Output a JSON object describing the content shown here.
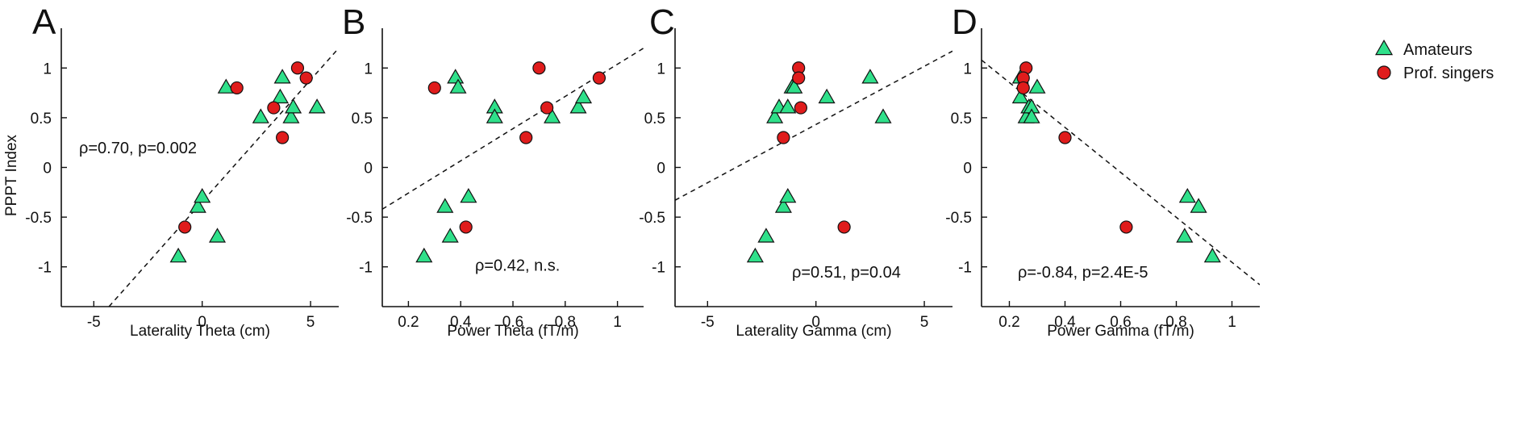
{
  "colors": {
    "amateurs": "#2fe08a",
    "prof_singers": "#e01c1c",
    "marker_edge": "#111111",
    "axis": "#111111",
    "fit_line": "#111111"
  },
  "legend": {
    "amateurs": "Amateurs",
    "prof_singers": "Prof. singers",
    "amateurs_marker": "triangle",
    "prof_singers_marker": "circle"
  },
  "chart_data": [
    {
      "type": "scatter",
      "panel_letter": "A",
      "xlabel": "Laterality Theta (cm)",
      "ylabel": "PPPT Index",
      "xlim": [
        -6.5,
        6.3
      ],
      "ylim": [
        -1.4,
        1.4
      ],
      "x_ticks": [
        -5,
        0,
        5
      ],
      "x_tick_labels": [
        "-5",
        "0",
        "5"
      ],
      "y_ticks": [
        -1,
        -0.5,
        0,
        0.5,
        1
      ],
      "y_tick_labels": [
        "-1",
        "-0.5",
        "0",
        "0.5",
        "1"
      ],
      "annotation": "ρ=0.70, p=0.002",
      "fit_line": [
        [
          -4.3,
          -1.4
        ],
        [
          6.3,
          1.2
        ]
      ],
      "series": [
        {
          "name": "Amateurs",
          "marker": "triangle",
          "points": [
            [
              1.1,
              0.8
            ],
            [
              2.7,
              0.5
            ],
            [
              3.6,
              0.7
            ],
            [
              3.7,
              0.9
            ],
            [
              4.1,
              0.5
            ],
            [
              4.2,
              0.6
            ],
            [
              5.3,
              0.6
            ],
            [
              -0.2,
              -0.4
            ],
            [
              0.0,
              -0.3
            ],
            [
              0.7,
              -0.7
            ],
            [
              -1.1,
              -0.9
            ]
          ]
        },
        {
          "name": "Prof. singers",
          "marker": "circle",
          "points": [
            [
              1.6,
              0.8
            ],
            [
              3.3,
              0.6
            ],
            [
              3.7,
              0.3
            ],
            [
              4.4,
              1.0
            ],
            [
              4.8,
              0.9
            ],
            [
              -0.8,
              -0.6
            ]
          ]
        }
      ]
    },
    {
      "type": "scatter",
      "panel_letter": "B",
      "xlabel": "Power Theta (fT/m)",
      "ylabel": "",
      "xlim": [
        0.1,
        1.1
      ],
      "ylim": [
        -1.4,
        1.4
      ],
      "x_ticks": [
        0.2,
        0.4,
        0.6,
        0.8,
        1.0
      ],
      "x_tick_labels": [
        "0.2",
        "0.4",
        "0.6",
        "0.8",
        "1"
      ],
      "y_ticks": [
        -1,
        -0.5,
        0,
        0.5,
        1
      ],
      "y_tick_labels": [
        "-1",
        "-0.5",
        "0",
        "0.5",
        "1"
      ],
      "annotation": "ρ=0.42, n.s.",
      "fit_line": [
        [
          0.1,
          -0.42
        ],
        [
          1.1,
          1.2
        ]
      ],
      "series": [
        {
          "name": "Amateurs",
          "marker": "triangle",
          "points": [
            [
              0.38,
              0.9
            ],
            [
              0.39,
              0.8
            ],
            [
              0.53,
              0.6
            ],
            [
              0.53,
              0.5
            ],
            [
              0.75,
              0.5
            ],
            [
              0.85,
              0.6
            ],
            [
              0.87,
              0.7
            ],
            [
              0.26,
              -0.9
            ],
            [
              0.34,
              -0.4
            ],
            [
              0.36,
              -0.7
            ],
            [
              0.43,
              -0.3
            ]
          ]
        },
        {
          "name": "Prof. singers",
          "marker": "circle",
          "points": [
            [
              0.3,
              0.8
            ],
            [
              0.65,
              0.3
            ],
            [
              0.7,
              1.0
            ],
            [
              0.73,
              0.6
            ],
            [
              0.93,
              0.9
            ],
            [
              0.42,
              -0.6
            ]
          ]
        }
      ]
    },
    {
      "type": "scatter",
      "panel_letter": "C",
      "xlabel": "Laterality Gamma (cm)",
      "ylabel": "",
      "xlim": [
        -6.5,
        6.3
      ],
      "ylim": [
        -1.4,
        1.4
      ],
      "x_ticks": [
        -5,
        0,
        5
      ],
      "x_tick_labels": [
        "-5",
        "0",
        "5"
      ],
      "y_ticks": [
        -1,
        -0.5,
        0,
        0.5,
        1
      ],
      "y_tick_labels": [
        "-1",
        "-0.5",
        "0",
        "0.5",
        "1"
      ],
      "annotation": "ρ=0.51, p=0.04",
      "fit_line": [
        [
          -6.5,
          -0.33
        ],
        [
          6.3,
          1.17
        ]
      ],
      "series": [
        {
          "name": "Amateurs",
          "marker": "triangle",
          "points": [
            [
              -1.9,
              0.5
            ],
            [
              -1.7,
              0.6
            ],
            [
              -1.3,
              0.6
            ],
            [
              -1.1,
              0.8
            ],
            [
              -1.0,
              0.8
            ],
            [
              0.5,
              0.7
            ],
            [
              2.5,
              0.9
            ],
            [
              3.1,
              0.5
            ],
            [
              -2.8,
              -0.9
            ],
            [
              -2.3,
              -0.7
            ],
            [
              -1.5,
              -0.4
            ],
            [
              -1.3,
              -0.3
            ]
          ]
        },
        {
          "name": "Prof. singers",
          "marker": "circle",
          "points": [
            [
              -0.8,
              1.0
            ],
            [
              -0.8,
              0.9
            ],
            [
              -0.7,
              0.6
            ],
            [
              -1.5,
              0.3
            ],
            [
              1.3,
              -0.6
            ]
          ]
        }
      ]
    },
    {
      "type": "scatter",
      "panel_letter": "D",
      "xlabel": "Power Gamma (fT/m)",
      "ylabel": "",
      "xlim": [
        0.1,
        1.1
      ],
      "ylim": [
        -1.4,
        1.4
      ],
      "x_ticks": [
        0.2,
        0.4,
        0.6,
        0.8,
        1.0
      ],
      "x_tick_labels": [
        "0.2",
        "0.4",
        "0.6",
        "0.8",
        "1"
      ],
      "y_ticks": [
        -1,
        -0.5,
        0,
        0.5,
        1
      ],
      "y_tick_labels": [
        "-1",
        "-0.5",
        "0",
        "0.5",
        "1"
      ],
      "annotation": "ρ=-0.84, p=2.4E-5",
      "fit_line": [
        [
          0.1,
          1.08
        ],
        [
          1.1,
          -1.18
        ]
      ],
      "series": [
        {
          "name": "Amateurs",
          "marker": "triangle",
          "points": [
            [
              0.24,
              0.9
            ],
            [
              0.24,
              0.7
            ],
            [
              0.26,
              0.5
            ],
            [
              0.27,
              0.6
            ],
            [
              0.28,
              0.6
            ],
            [
              0.28,
              0.5
            ],
            [
              0.3,
              0.8
            ],
            [
              0.84,
              -0.3
            ],
            [
              0.88,
              -0.4
            ],
            [
              0.83,
              -0.7
            ],
            [
              0.93,
              -0.9
            ]
          ]
        },
        {
          "name": "Prof. singers",
          "marker": "circle",
          "points": [
            [
              0.26,
              1.0
            ],
            [
              0.25,
              0.9
            ],
            [
              0.25,
              0.8
            ],
            [
              0.4,
              0.3
            ],
            [
              0.62,
              -0.6
            ]
          ]
        }
      ]
    }
  ]
}
